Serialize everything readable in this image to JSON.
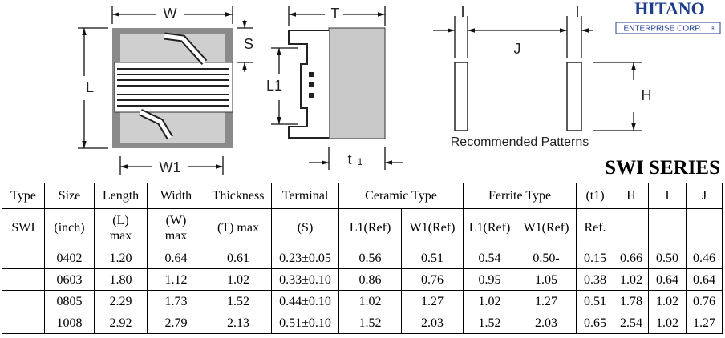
{
  "logo": {
    "name": "HITANO",
    "subtitle": "ENTERPRISE CORP.",
    "mark": "®"
  },
  "drawing": {
    "labels": {
      "W": "W",
      "S": "S",
      "L": "L",
      "W1": "W1",
      "T": "T",
      "L1": "L1",
      "t1": "t",
      "t1_sub": "1",
      "I_left": "I",
      "I_right": "I",
      "J": "J",
      "H": "H"
    },
    "caption": "Recommended Patterns"
  },
  "series_title": "SWI SERIES",
  "table": {
    "header": [
      [
        "Type",
        "Size",
        "Length",
        "Width",
        "Thickness",
        "Terminal",
        "Ceramic Type",
        "Ferrite Type",
        "(t1)",
        "H",
        "I",
        "J"
      ],
      [
        "SWI",
        "(inch)",
        [
          "(L)",
          "max"
        ],
        [
          "(W)",
          "max"
        ],
        "(T) max",
        "(S)",
        "L1(Ref)",
        "W1(Ref)",
        "L1(Ref)",
        "W1(Ref)",
        "Ref."
      ]
    ],
    "rows": [
      [
        "0402",
        "1.20",
        "0.64",
        "0.61",
        "0.23±0.05",
        "0.56",
        "0.51",
        "0.54",
        "0.50-",
        "0.15",
        "0.66",
        "0.50",
        "0.46"
      ],
      [
        "0603",
        "1.80",
        "1.12",
        "1.02",
        "0.33±0.10",
        "0.86",
        "0.76",
        "0.95",
        "1.05",
        "0.38",
        "1.02",
        "0.64",
        "0.64"
      ],
      [
        "0805",
        "2.29",
        "1.73",
        "1.52",
        "0.44±0.10",
        "1.02",
        "1.27",
        "1.02",
        "1.27",
        "0.51",
        "1.78",
        "1.02",
        "0.76"
      ],
      [
        "1008",
        "2.92",
        "2.79",
        "2.13",
        "0.51±0.10",
        "1.52",
        "2.03",
        "1.52",
        "2.03",
        "0.65",
        "2.54",
        "1.02",
        "1.27"
      ]
    ]
  }
}
